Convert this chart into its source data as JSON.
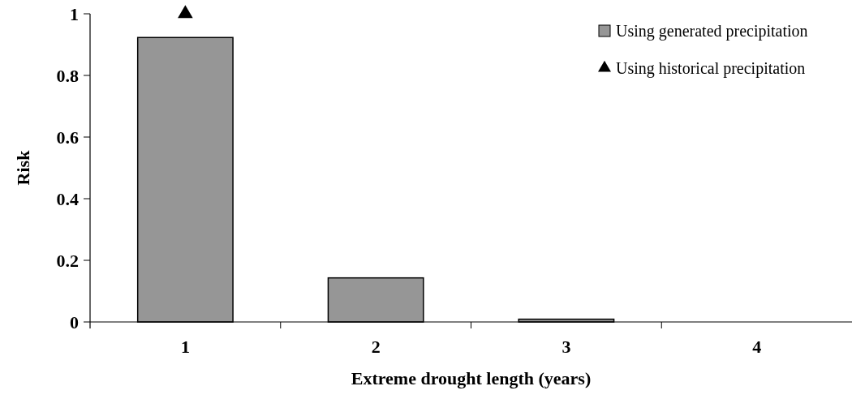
{
  "chart_data": {
    "type": "bar",
    "xlabel": "Extreme drought length (years)",
    "ylabel": "Risk",
    "categories": [
      "1",
      "2",
      "3",
      "4"
    ],
    "series": [
      {
        "name": "Using generated precipitation",
        "color": "#969696",
        "values": [
          0.923,
          0.143,
          0.009,
          0
        ]
      },
      {
        "name": "Using historical precipitation",
        "type": "scatter",
        "color": "#000000",
        "marker": "triangle",
        "x": [
          "1"
        ],
        "values": [
          1
        ]
      }
    ],
    "ylim": [
      0,
      1
    ],
    "yticks": [
      0,
      0.2,
      0.4,
      0.6,
      0.8,
      1
    ],
    "grid": false,
    "legend": "top right"
  }
}
